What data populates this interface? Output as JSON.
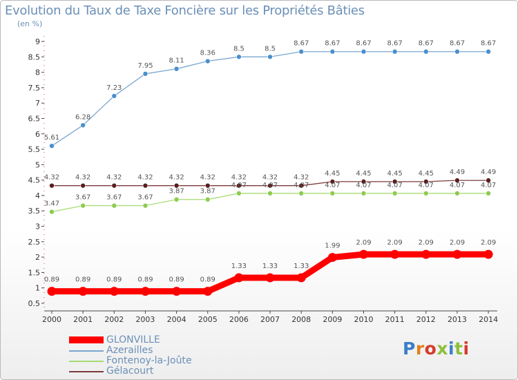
{
  "title": "Evolution du Taux de Taxe Foncière sur les Propriétés Bâties",
  "unit": "(en %)",
  "logo": "Proxiti",
  "chart_data": {
    "type": "line",
    "title": "Evolution du Taux de Taxe Foncière sur les Propriétés Bâties",
    "ylabel": "(en %)",
    "xlabel": "",
    "ylim": [
      0.5,
      9
    ],
    "yticks": [
      0.5,
      1,
      1.5,
      2,
      2.5,
      3,
      3.5,
      4,
      4.5,
      5,
      5.5,
      6,
      6.5,
      7,
      7.5,
      8,
      8.5,
      9
    ],
    "grid": false,
    "legend_position": "bottom-left",
    "categories": [
      "2000",
      "2001",
      "2002",
      "2003",
      "2004",
      "2005",
      "2006",
      "2007",
      "2008",
      "2009",
      "2010",
      "2011",
      "2012",
      "2013",
      "2014"
    ],
    "series": [
      {
        "name": "GLONVILLE",
        "color": "#ff0000",
        "markerColor": "#ff0000",
        "width": 9,
        "values": [
          0.89,
          0.89,
          0.89,
          0.89,
          0.89,
          0.89,
          1.33,
          1.33,
          1.33,
          1.99,
          2.09,
          2.09,
          2.09,
          2.09,
          2.09
        ],
        "labels": [
          "0.89",
          "0.89",
          "0.89",
          "0.89",
          "0.89",
          "0.89",
          "1.33",
          "1.33",
          "1.33",
          "1.99",
          "2.09",
          "2.09",
          "2.09",
          "2.09",
          "2.09"
        ]
      },
      {
        "name": "Azerailles",
        "color": "#7aa6d0",
        "markerColor": "#4a8fcc",
        "width": 1.3,
        "values": [
          5.61,
          6.28,
          7.23,
          7.95,
          8.11,
          8.36,
          8.5,
          8.5,
          8.67,
          8.67,
          8.67,
          8.67,
          8.67,
          8.67,
          8.67
        ],
        "labels": [
          "5.61",
          "6.28",
          "7.23",
          "7.95",
          "8.11",
          "8.36",
          "8.5",
          "8.5",
          "8.67",
          "8.67",
          "8.67",
          "8.67",
          "8.67",
          "8.67",
          "8.67"
        ]
      },
      {
        "name": "Fontenoy-la-Joûte",
        "color": "#a6dc74",
        "markerColor": "#8dcc50",
        "width": 1.3,
        "values": [
          3.47,
          3.67,
          3.67,
          3.67,
          3.87,
          3.87,
          4.07,
          4.07,
          4.07,
          4.07,
          4.07,
          4.07,
          4.07,
          4.07,
          4.07
        ],
        "labels": [
          "3.47",
          "3.67",
          "3.67",
          "3.67",
          "3.87",
          "3.87",
          "4.07",
          "4.07",
          "4.07",
          "4.07",
          "4.07",
          "4.07",
          "4.07",
          "4.07",
          "4.07"
        ]
      },
      {
        "name": "Gélacourt",
        "color": "#7a3a3a",
        "markerColor": "#5a1e1e",
        "width": 1.3,
        "values": [
          4.32,
          4.32,
          4.32,
          4.32,
          4.32,
          4.32,
          4.32,
          4.32,
          4.32,
          4.45,
          4.45,
          4.45,
          4.45,
          4.49,
          4.49
        ],
        "labels": [
          "4.32",
          "4.32",
          "4.32",
          "4.32",
          "4.32",
          "4.32",
          "4.32",
          "4.32",
          "4.32",
          "4.45",
          "4.45",
          "4.45",
          "4.45",
          "4.49",
          "4.49"
        ]
      }
    ]
  }
}
